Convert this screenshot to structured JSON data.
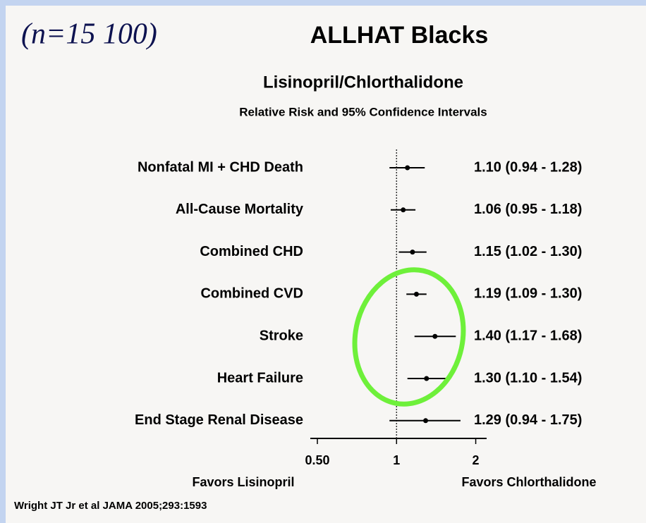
{
  "chart_data": {
    "type": "forest",
    "annotation": "(n=15 100)",
    "title": "ALLHAT Blacks",
    "subtitle": "Lisinopril/Chlorthalidone",
    "axis_title": "Relative Risk and 95% Confidence Intervals",
    "categories": [
      "Nonfatal MI + CHD Death",
      "All-Cause Mortality",
      "Combined CHD",
      "Combined CVD",
      "Stroke",
      "Heart Failure",
      "End Stage Renal Disease"
    ],
    "values": [
      1.1,
      1.06,
      1.15,
      1.19,
      1.4,
      1.3,
      1.29
    ],
    "lower": [
      0.94,
      0.95,
      1.02,
      1.09,
      1.17,
      1.1,
      0.94
    ],
    "upper": [
      1.28,
      1.18,
      1.3,
      1.3,
      1.68,
      1.54,
      1.75
    ],
    "value_labels": [
      "1.10 (0.94 - 1.28)",
      "1.06 (0.95 - 1.18)",
      "1.15 (1.02 - 1.30)",
      "1.19 (1.09 - 1.30)",
      "1.40 (1.17 - 1.68)",
      "1.30 (1.10 - 1.54)",
      "1.29 (0.94 - 1.75)"
    ],
    "color": "#000000",
    "log_x": true,
    "xlim": [
      0.47,
      2.2
    ],
    "xticks": [
      {
        "value": 0.5,
        "label": "0.50"
      },
      1,
      2
    ],
    "reference": 1,
    "x_left_label": "Favors Lisinopril",
    "x_right_label": "Favors Chlorthalidone",
    "source": "Wright JT Jr et al JAMA 2005;293:1593"
  }
}
